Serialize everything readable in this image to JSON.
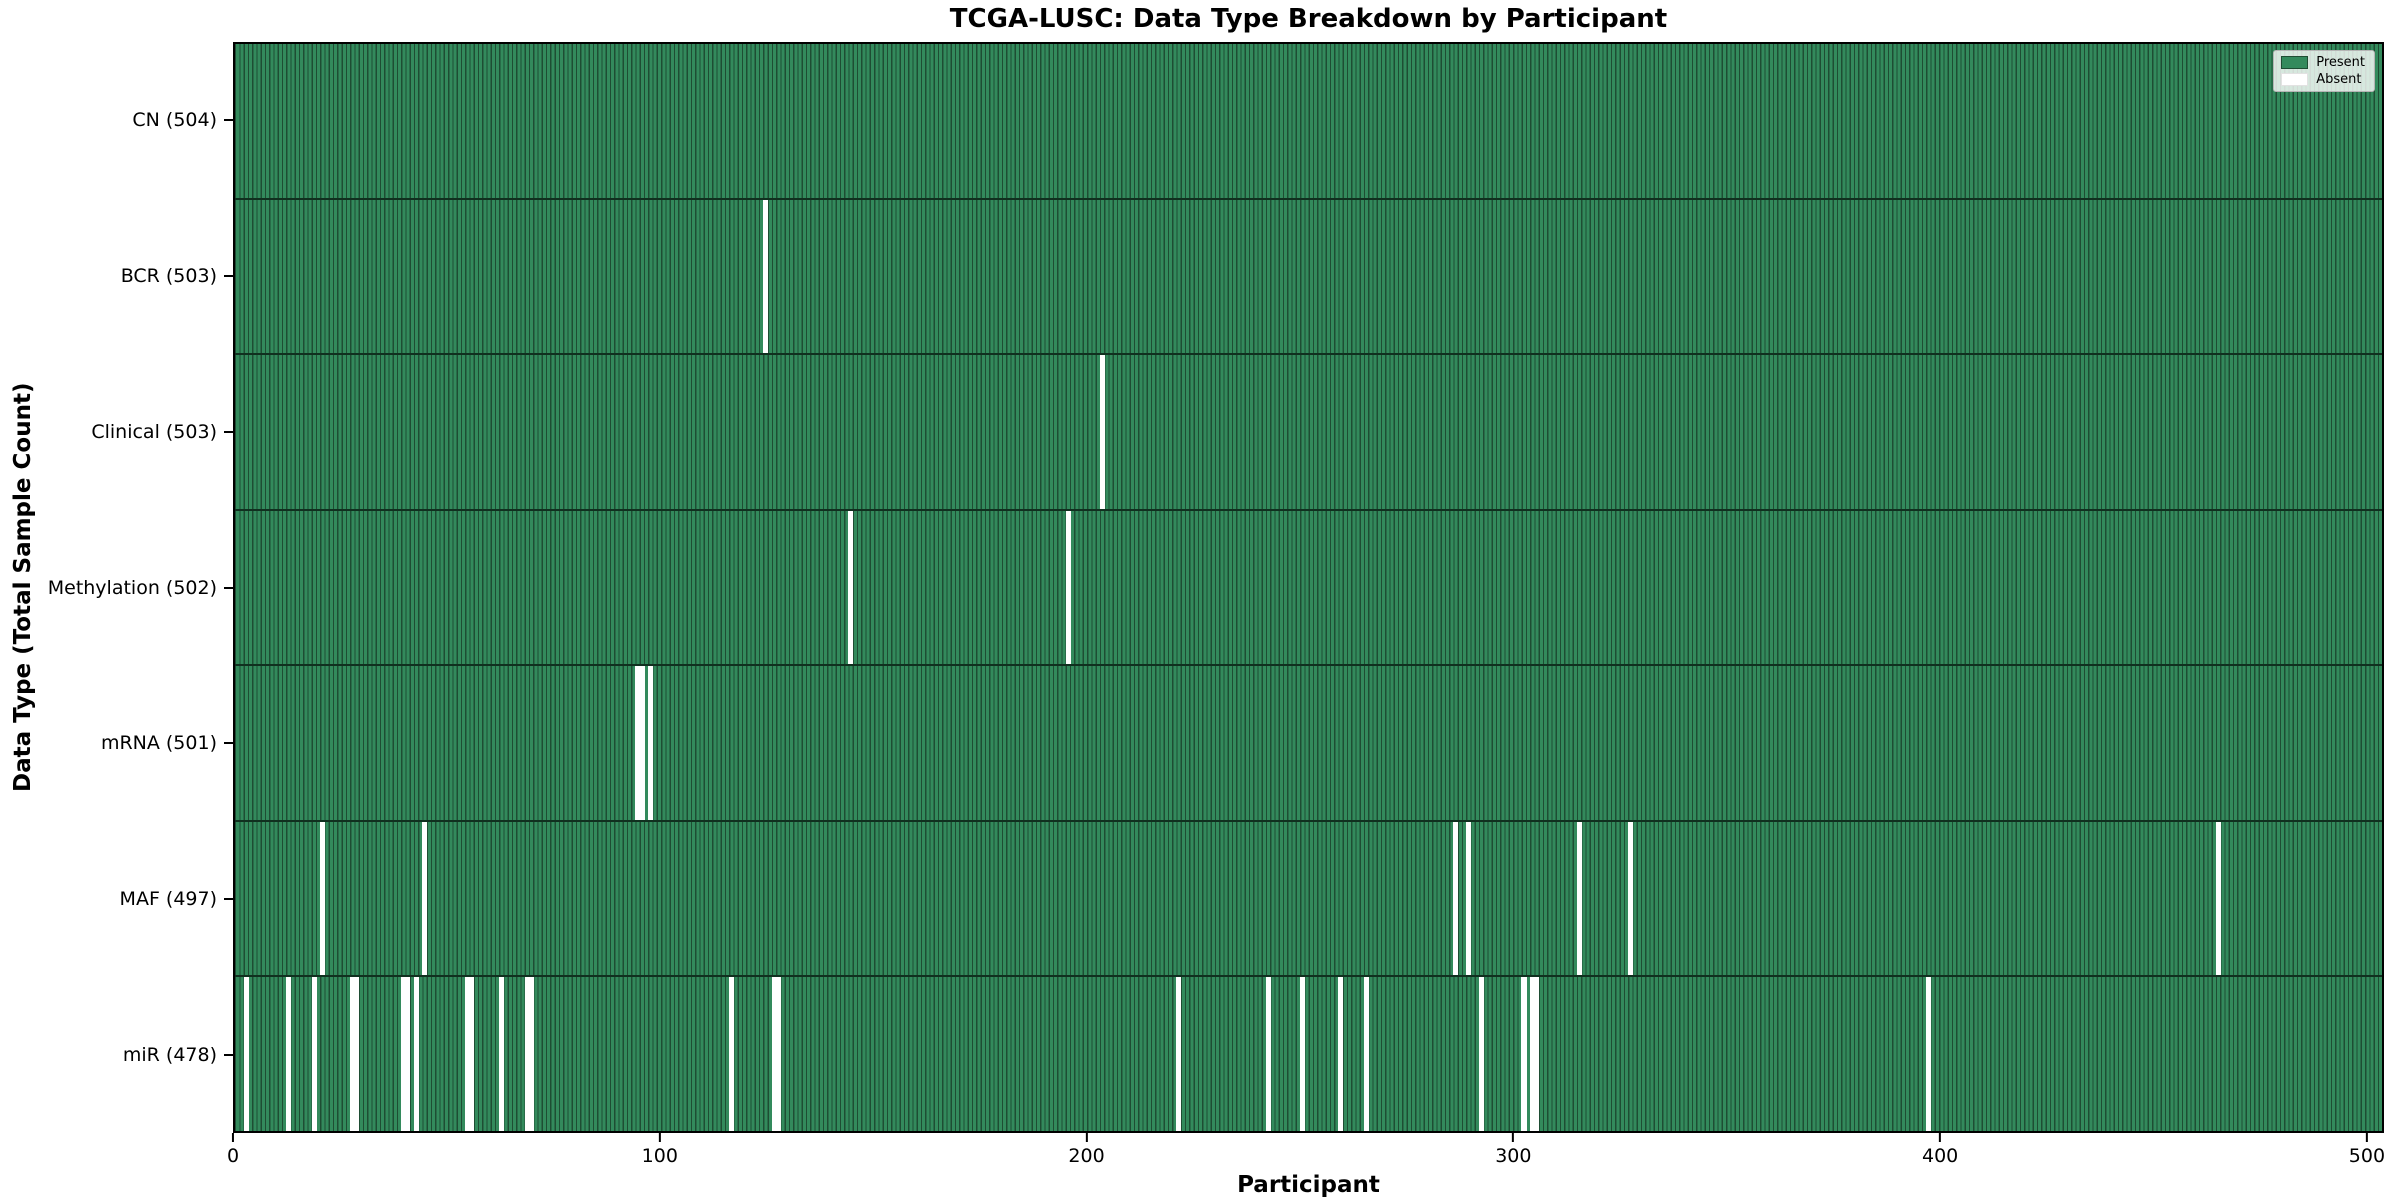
{
  "title": "TCGA-LUSC: Data Type Breakdown by Participant",
  "chart_data": {
    "type": "heatmap",
    "title": "TCGA-LUSC: Data Type Breakdown by Participant",
    "xlabel": "Participant",
    "ylabel": "Data Type (Total Sample Count)",
    "n_participants": 504,
    "x_ticks": [
      0,
      100,
      200,
      300,
      400,
      500
    ],
    "xlim": [
      0,
      504
    ],
    "grid": false,
    "legend_position": "upper right",
    "legend": [
      {
        "label": "Present",
        "color": "#338a5c"
      },
      {
        "label": "Absent",
        "color": "#ffffff"
      }
    ],
    "colors": {
      "present": "#338a5c",
      "bar_edge": "#1e4d33",
      "absent": "#ffffff"
    },
    "rows": [
      {
        "name": "cn",
        "label": "CN (504)",
        "total": 504,
        "absent": []
      },
      {
        "name": "bcr",
        "label": "BCR (503)",
        "total": 503,
        "absent": [
          124
        ]
      },
      {
        "name": "clinical",
        "label": "Clinical (503)",
        "total": 503,
        "absent": [
          203
        ]
      },
      {
        "name": "methylation",
        "label": "Methylation (502)",
        "total": 502,
        "absent": [
          144,
          195
        ]
      },
      {
        "name": "mrna",
        "label": "mRNA (501)",
        "total": 501,
        "absent": [
          94,
          95,
          97
        ]
      },
      {
        "name": "maf",
        "label": "MAF (497)",
        "total": 497,
        "absent": [
          20,
          44,
          286,
          289,
          315,
          327,
          465
        ]
      },
      {
        "name": "mir",
        "label": "miR (478)",
        "total": 478,
        "absent": [
          2,
          12,
          18,
          27,
          28,
          39,
          40,
          42,
          54,
          55,
          62,
          68,
          69,
          116,
          126,
          127,
          221,
          242,
          250,
          259,
          265,
          292,
          302,
          304,
          305,
          397
        ]
      }
    ]
  }
}
